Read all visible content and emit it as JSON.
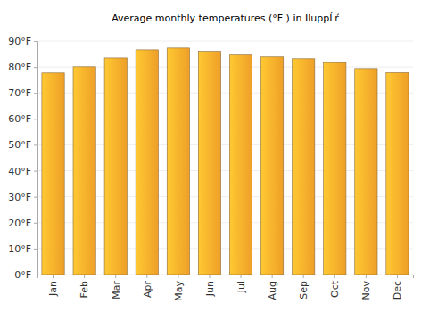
{
  "chart_data": {
    "type": "bar",
    "title": "Average monthly temperatures (°F ) in IluppĹŕ",
    "categories": [
      "Jan",
      "Feb",
      "Mar",
      "Apr",
      "May",
      "Jun",
      "Jul",
      "Aug",
      "Sep",
      "Oct",
      "Nov",
      "Dec"
    ],
    "values": [
      77.7,
      80.1,
      83.5,
      86.6,
      87.3,
      86.0,
      84.6,
      83.9,
      83.2,
      81.7,
      79.4,
      77.8
    ],
    "color": "#fba82a",
    "ylim": [
      0,
      90
    ],
    "yticks": [
      {
        "value": 0,
        "label": "0°F"
      },
      {
        "value": 10,
        "label": "10°F"
      },
      {
        "value": 20,
        "label": "20°F"
      },
      {
        "value": 30,
        "label": "30°F"
      },
      {
        "value": 40,
        "label": "40°F"
      },
      {
        "value": 50,
        "label": "50°F"
      },
      {
        "value": 60,
        "label": "60°F"
      },
      {
        "value": 70,
        "label": "70°F"
      },
      {
        "value": 80,
        "label": "80°F"
      },
      {
        "value": 90,
        "label": "90°F"
      }
    ],
    "grid": true
  }
}
